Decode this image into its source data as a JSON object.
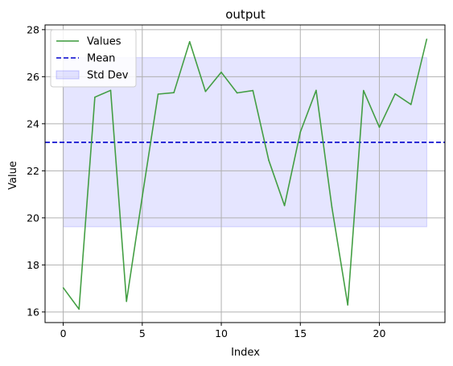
{
  "chart_data": {
    "type": "line",
    "title": "output",
    "xlabel": "Index",
    "ylabel": "Value",
    "xlim": [
      -1.15,
      24.15
    ],
    "ylim": [
      15.55,
      28.2
    ],
    "x_ticks": [
      0,
      5,
      10,
      15,
      20
    ],
    "y_ticks": [
      16,
      18,
      20,
      22,
      24,
      26,
      28
    ],
    "grid": true,
    "legend_position": "top-left",
    "series": [
      {
        "name": "Values",
        "kind": "line",
        "color": "#3a9a3a",
        "x": [
          0,
          1,
          2,
          3,
          4,
          5,
          6,
          7,
          8,
          9,
          10,
          11,
          12,
          13,
          14,
          15,
          16,
          17,
          18,
          19,
          20,
          21,
          22,
          23
        ],
        "values": [
          17.03,
          16.12,
          25.13,
          25.42,
          16.45,
          20.9,
          25.26,
          25.32,
          27.49,
          25.37,
          26.19,
          25.31,
          25.41,
          22.45,
          20.52,
          23.65,
          25.42,
          20.45,
          16.3,
          25.41,
          23.85,
          25.27,
          24.82,
          27.6
        ]
      },
      {
        "name": "Mean",
        "kind": "hline",
        "color": "#0000cc",
        "value": 23.21
      },
      {
        "name": "Std Dev",
        "kind": "band",
        "color": "#0000ff",
        "lower": 19.62,
        "upper": 26.81,
        "x_range": [
          0,
          23
        ]
      }
    ]
  }
}
